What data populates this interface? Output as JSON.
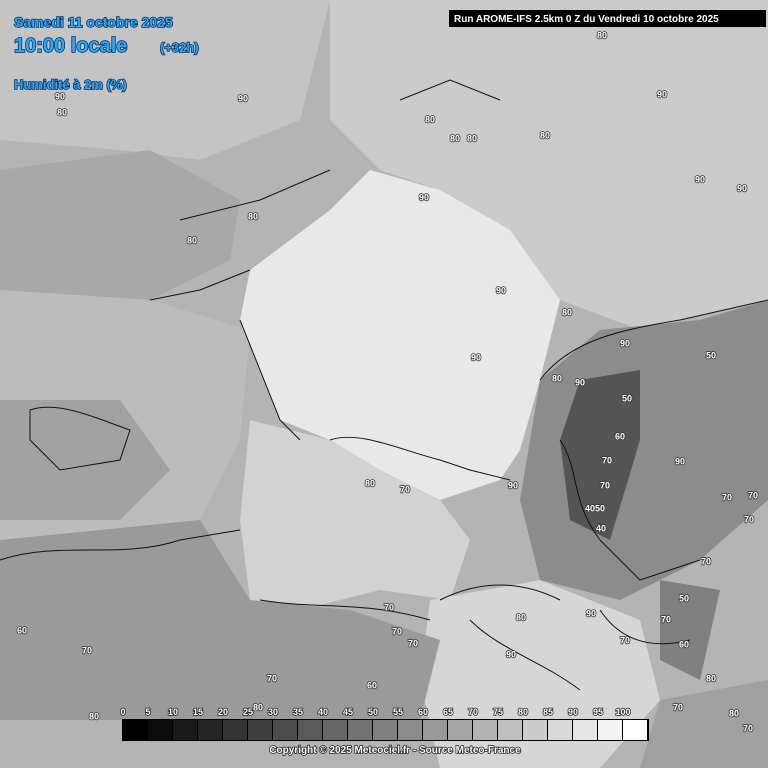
{
  "header": {
    "date": "Samedi 11 octobre 2025",
    "time": "10:00 locale",
    "lead": "(+32h)",
    "parameter": "Humidité à 2m (%)",
    "run": "Run AROME-IFS 2.5km 0 Z du Vendredi 10 octobre 2025"
  },
  "contour_labels": [
    "90",
    "80",
    "90",
    "80",
    "80",
    "80",
    "80",
    "80",
    "90",
    "80",
    "90",
    "90",
    "90",
    "90",
    "80",
    "90",
    "80",
    "90",
    "90",
    "50",
    "50",
    "60",
    "70",
    "90",
    "70",
    "4050",
    "40",
    "70",
    "70",
    "70",
    "80",
    "70",
    "90",
    "70",
    "50",
    "70",
    "60",
    "70",
    "90",
    "80",
    "90",
    "70",
    "70",
    "70",
    "60",
    "70",
    "80",
    "80",
    "60",
    "70",
    "80",
    "70",
    "80",
    "70",
    "80"
  ],
  "legend": {
    "ticks": [
      0,
      5,
      10,
      15,
      20,
      25,
      30,
      35,
      40,
      45,
      50,
      55,
      60,
      65,
      70,
      75,
      80,
      85,
      90,
      95,
      100
    ]
  },
  "footer": {
    "copyright": "Copyright © 2025 Meteociel.fr - Source Meteo-France"
  }
}
